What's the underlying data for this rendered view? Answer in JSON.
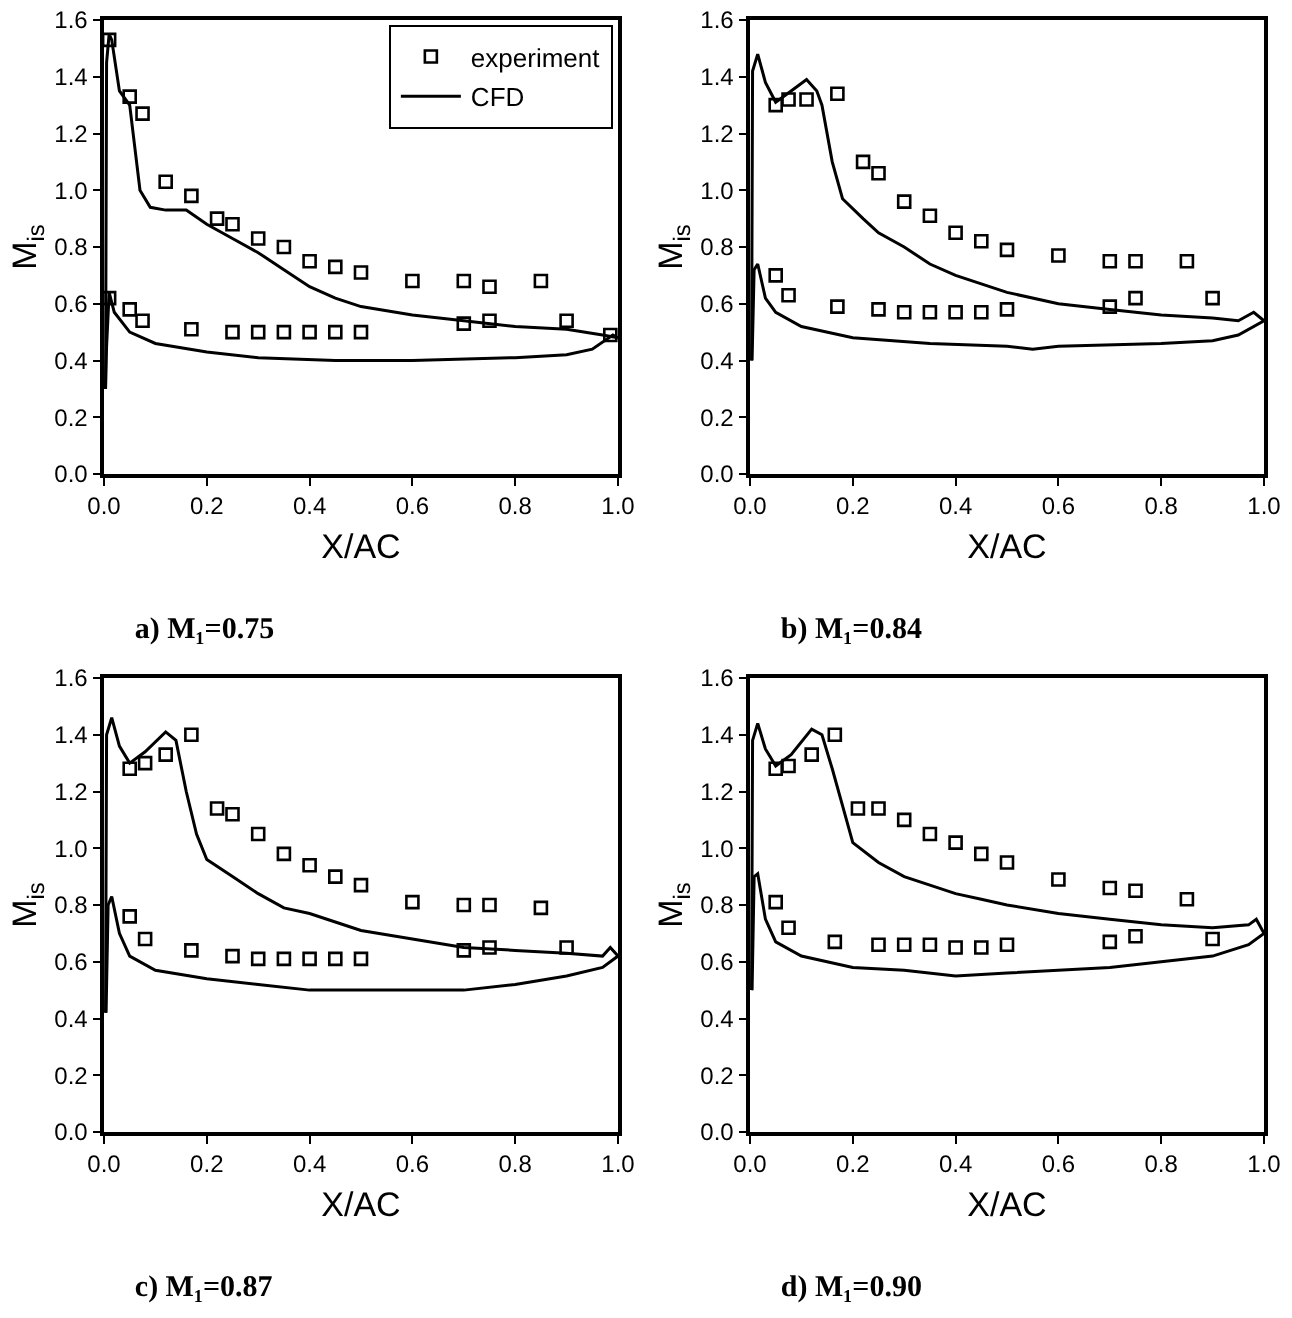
{
  "chart_data": [
    {
      "type": "scatter",
      "title": "a) M₁=0.75",
      "xlabel": "X/AC",
      "ylabel": "M$_{is}$",
      "xlim": [
        0,
        1
      ],
      "ylim": [
        0,
        1.6
      ],
      "xticks": [
        {
          "value": 0,
          "label": "0.0"
        },
        {
          "value": 0.2,
          "label": "0.2"
        },
        {
          "value": 0.4,
          "label": "0.4"
        },
        {
          "value": 0.6,
          "label": "0.6"
        },
        {
          "value": 0.8,
          "label": "0.8"
        },
        {
          "value": 1,
          "label": "1.0"
        }
      ],
      "yticks": [
        {
          "value": 0,
          "label": "0.0"
        },
        {
          "value": 0.2,
          "label": "0.2"
        },
        {
          "value": 0.4,
          "label": "0.4"
        },
        {
          "value": 0.6,
          "label": "0.6"
        },
        {
          "value": 0.8,
          "label": "0.8"
        },
        {
          "value": 1,
          "label": "1.0"
        },
        {
          "value": 1.2,
          "label": "1.2"
        },
        {
          "value": 1.4,
          "label": "1.4"
        },
        {
          "value": 1.6,
          "label": "1.6"
        }
      ],
      "grid": false,
      "legend": "top right",
      "series": [
        {
          "name": "experiment",
          "type": "scatter",
          "marker": "square",
          "color": "#000000",
          "x": [
            0.01,
            0.05,
            0.075,
            0.12,
            0.17,
            0.22,
            0.25,
            0.3,
            0.35,
            0.4,
            0.45,
            0.5,
            0.6,
            0.7,
            0.75,
            0.85,
            0.9,
            0.01,
            0.05,
            0.075,
            0.17,
            0.25,
            0.3,
            0.35,
            0.4,
            0.45,
            0.5,
            0.7,
            0.75,
            0.985
          ],
          "values": [
            1.53,
            1.33,
            1.27,
            1.03,
            0.98,
            0.9,
            0.88,
            0.83,
            0.8,
            0.75,
            0.73,
            0.71,
            0.68,
            0.68,
            0.66,
            0.68,
            0.54,
            0.62,
            0.58,
            0.54,
            0.51,
            0.5,
            0.5,
            0.5,
            0.5,
            0.5,
            0.5,
            0.53,
            0.54,
            0.49
          ]
        },
        {
          "name": "CFD",
          "type": "line",
          "marker": "none",
          "line_style": "solid",
          "color": "#000000",
          "x": [
            0.003,
            0.005,
            0.01,
            0.015,
            0.03,
            0.05,
            0.06,
            0.07,
            0.09,
            0.12,
            0.16,
            0.2,
            0.25,
            0.3,
            0.35,
            0.4,
            0.45,
            0.5,
            0.6,
            0.7,
            0.8,
            0.9,
            0.97,
            1.0
          ],
          "values": [
            0.3,
            1.45,
            1.55,
            1.53,
            1.35,
            1.3,
            1.15,
            1.0,
            0.94,
            0.93,
            0.93,
            0.88,
            0.83,
            0.78,
            0.72,
            0.66,
            0.62,
            0.59,
            0.56,
            0.54,
            0.52,
            0.51,
            0.49,
            0.48
          ]
        },
        {
          "type": "line",
          "marker": "none",
          "line_style": "solid",
          "color": "#000000",
          "x": [
            0.003,
            0.005,
            0.01,
            0.02,
            0.05,
            0.1,
            0.2,
            0.3,
            0.45,
            0.6,
            0.8,
            0.9,
            0.95,
            0.99,
            1.0
          ],
          "values": [
            0.3,
            0.45,
            0.64,
            0.57,
            0.5,
            0.46,
            0.43,
            0.41,
            0.4,
            0.4,
            0.41,
            0.42,
            0.44,
            0.49,
            0.48
          ]
        }
      ]
    },
    {
      "type": "scatter",
      "title": "b) M₁=0.84",
      "xlabel": "X/AC",
      "ylabel": "M$_{is}$",
      "xlim": [
        0,
        1
      ],
      "ylim": [
        0,
        1.6
      ],
      "xticks": [
        {
          "value": 0,
          "label": "0.0"
        },
        {
          "value": 0.2,
          "label": "0.2"
        },
        {
          "value": 0.4,
          "label": "0.4"
        },
        {
          "value": 0.6,
          "label": "0.6"
        },
        {
          "value": 0.8,
          "label": "0.8"
        },
        {
          "value": 1,
          "label": "1.0"
        }
      ],
      "yticks": [
        {
          "value": 0,
          "label": "0.0"
        },
        {
          "value": 0.2,
          "label": "0.2"
        },
        {
          "value": 0.4,
          "label": "0.4"
        },
        {
          "value": 0.6,
          "label": "0.6"
        },
        {
          "value": 0.8,
          "label": "0.8"
        },
        {
          "value": 1,
          "label": "1.0"
        },
        {
          "value": 1.2,
          "label": "1.2"
        },
        {
          "value": 1.4,
          "label": "1.4"
        },
        {
          "value": 1.6,
          "label": "1.6"
        }
      ],
      "grid": false,
      "series": [
        {
          "type": "scatter",
          "marker": "square",
          "color": "#000000",
          "x": [
            0.05,
            0.075,
            0.11,
            0.17,
            0.22,
            0.25,
            0.3,
            0.35,
            0.4,
            0.45,
            0.5,
            0.6,
            0.7,
            0.75,
            0.85,
            0.9,
            0.05,
            0.075,
            0.17,
            0.25,
            0.3,
            0.35,
            0.4,
            0.45,
            0.5,
            0.7,
            0.75
          ],
          "values": [
            1.3,
            1.32,
            1.32,
            1.34,
            1.1,
            1.06,
            0.96,
            0.91,
            0.85,
            0.82,
            0.79,
            0.77,
            0.75,
            0.75,
            0.75,
            0.62,
            0.7,
            0.63,
            0.59,
            0.58,
            0.57,
            0.57,
            0.57,
            0.57,
            0.58,
            0.59,
            0.62
          ]
        },
        {
          "type": "line",
          "marker": "none",
          "line_style": "solid",
          "color": "#000000",
          "x": [
            0.003,
            0.005,
            0.015,
            0.03,
            0.05,
            0.08,
            0.11,
            0.13,
            0.14,
            0.16,
            0.18,
            0.22,
            0.25,
            0.3,
            0.35,
            0.4,
            0.45,
            0.5,
            0.6,
            0.7,
            0.8,
            0.9,
            0.95,
            0.98,
            1.0
          ],
          "values": [
            0.4,
            1.42,
            1.48,
            1.38,
            1.31,
            1.35,
            1.39,
            1.35,
            1.3,
            1.1,
            0.97,
            0.9,
            0.85,
            0.8,
            0.74,
            0.7,
            0.67,
            0.64,
            0.6,
            0.58,
            0.56,
            0.55,
            0.54,
            0.57,
            0.54
          ]
        },
        {
          "type": "line",
          "marker": "none",
          "line_style": "solid",
          "color": "#000000",
          "x": [
            0.004,
            0.008,
            0.015,
            0.03,
            0.05,
            0.1,
            0.2,
            0.35,
            0.5,
            0.55,
            0.6,
            0.8,
            0.9,
            0.95,
            1.0
          ],
          "values": [
            0.4,
            0.72,
            0.74,
            0.62,
            0.57,
            0.52,
            0.48,
            0.46,
            0.45,
            0.44,
            0.45,
            0.46,
            0.47,
            0.49,
            0.54
          ]
        }
      ]
    },
    {
      "type": "scatter",
      "title": "c) M₁=0.87",
      "xlabel": "X/AC",
      "ylabel": "M$_{is}$",
      "xlim": [
        0,
        1
      ],
      "ylim": [
        0,
        1.6
      ],
      "xticks": [
        {
          "value": 0,
          "label": "0.0"
        },
        {
          "value": 0.2,
          "label": "0.2"
        },
        {
          "value": 0.4,
          "label": "0.4"
        },
        {
          "value": 0.6,
          "label": "0.6"
        },
        {
          "value": 0.8,
          "label": "0.8"
        },
        {
          "value": 1,
          "label": "1.0"
        }
      ],
      "yticks": [
        {
          "value": 0,
          "label": "0.0"
        },
        {
          "value": 0.2,
          "label": "0.2"
        },
        {
          "value": 0.4,
          "label": "0.4"
        },
        {
          "value": 0.6,
          "label": "0.6"
        },
        {
          "value": 0.8,
          "label": "0.8"
        },
        {
          "value": 1,
          "label": "1.0"
        },
        {
          "value": 1.2,
          "label": "1.2"
        },
        {
          "value": 1.4,
          "label": "1.4"
        },
        {
          "value": 1.6,
          "label": "1.6"
        }
      ],
      "grid": false,
      "series": [
        {
          "type": "scatter",
          "marker": "square",
          "color": "#000000",
          "x": [
            0.05,
            0.08,
            0.12,
            0.17,
            0.22,
            0.25,
            0.3,
            0.35,
            0.4,
            0.45,
            0.5,
            0.6,
            0.7,
            0.75,
            0.85,
            0.9,
            0.05,
            0.08,
            0.17,
            0.25,
            0.3,
            0.35,
            0.4,
            0.45,
            0.5,
            0.7,
            0.75
          ],
          "values": [
            1.28,
            1.3,
            1.33,
            1.4,
            1.14,
            1.12,
            1.05,
            0.98,
            0.94,
            0.9,
            0.87,
            0.81,
            0.8,
            0.8,
            0.79,
            0.65,
            0.76,
            0.68,
            0.64,
            0.62,
            0.61,
            0.61,
            0.61,
            0.61,
            0.61,
            0.64,
            0.65
          ]
        },
        {
          "type": "line",
          "marker": "none",
          "line_style": "solid",
          "color": "#000000",
          "x": [
            0.003,
            0.005,
            0.015,
            0.03,
            0.05,
            0.08,
            0.12,
            0.14,
            0.16,
            0.18,
            0.2,
            0.25,
            0.3,
            0.35,
            0.4,
            0.45,
            0.5,
            0.6,
            0.7,
            0.8,
            0.9,
            0.97,
            0.985,
            1.0
          ],
          "values": [
            0.42,
            1.4,
            1.46,
            1.36,
            1.3,
            1.34,
            1.41,
            1.38,
            1.2,
            1.05,
            0.96,
            0.9,
            0.84,
            0.79,
            0.77,
            0.74,
            0.71,
            0.68,
            0.65,
            0.64,
            0.63,
            0.62,
            0.65,
            0.62
          ]
        },
        {
          "type": "line",
          "marker": "none",
          "line_style": "solid",
          "color": "#000000",
          "x": [
            0.004,
            0.008,
            0.015,
            0.03,
            0.05,
            0.1,
            0.2,
            0.3,
            0.4,
            0.5,
            0.7,
            0.8,
            0.9,
            0.97,
            1.0
          ],
          "values": [
            0.42,
            0.8,
            0.83,
            0.7,
            0.62,
            0.57,
            0.54,
            0.52,
            0.5,
            0.5,
            0.5,
            0.52,
            0.55,
            0.58,
            0.62
          ]
        }
      ]
    },
    {
      "type": "scatter",
      "title": "d) M₁=0.90",
      "xlabel": "X/AC",
      "ylabel": "M$_{is}$",
      "xlim": [
        0,
        1
      ],
      "ylim": [
        0,
        1.6
      ],
      "xticks": [
        {
          "value": 0,
          "label": "0.0"
        },
        {
          "value": 0.2,
          "label": "0.2"
        },
        {
          "value": 0.4,
          "label": "0.4"
        },
        {
          "value": 0.6,
          "label": "0.6"
        },
        {
          "value": 0.8,
          "label": "0.8"
        },
        {
          "value": 1,
          "label": "1.0"
        }
      ],
      "yticks": [
        {
          "value": 0,
          "label": "0.0"
        },
        {
          "value": 0.2,
          "label": "0.2"
        },
        {
          "value": 0.4,
          "label": "0.4"
        },
        {
          "value": 0.6,
          "label": "0.6"
        },
        {
          "value": 0.8,
          "label": "0.8"
        },
        {
          "value": 1,
          "label": "1.0"
        },
        {
          "value": 1.2,
          "label": "1.2"
        },
        {
          "value": 1.4,
          "label": "1.4"
        },
        {
          "value": 1.6,
          "label": "1.6"
        }
      ],
      "grid": false,
      "series": [
        {
          "type": "scatter",
          "marker": "square",
          "color": "#000000",
          "x": [
            0.05,
            0.075,
            0.12,
            0.165,
            0.21,
            0.25,
            0.3,
            0.35,
            0.4,
            0.45,
            0.5,
            0.6,
            0.7,
            0.75,
            0.85,
            0.9,
            0.05,
            0.075,
            0.165,
            0.25,
            0.3,
            0.35,
            0.4,
            0.45,
            0.5,
            0.7,
            0.75
          ],
          "values": [
            1.28,
            1.29,
            1.33,
            1.4,
            1.14,
            1.14,
            1.1,
            1.05,
            1.02,
            0.98,
            0.95,
            0.89,
            0.86,
            0.85,
            0.82,
            0.68,
            0.81,
            0.72,
            0.67,
            0.66,
            0.66,
            0.66,
            0.65,
            0.65,
            0.66,
            0.67,
            0.69
          ]
        },
        {
          "type": "line",
          "marker": "none",
          "line_style": "solid",
          "color": "#000000",
          "x": [
            0.003,
            0.005,
            0.015,
            0.03,
            0.05,
            0.08,
            0.12,
            0.14,
            0.16,
            0.18,
            0.2,
            0.25,
            0.3,
            0.35,
            0.4,
            0.45,
            0.5,
            0.6,
            0.7,
            0.8,
            0.9,
            0.97,
            0.985,
            1.0
          ],
          "values": [
            0.5,
            1.38,
            1.44,
            1.35,
            1.29,
            1.33,
            1.42,
            1.4,
            1.28,
            1.15,
            1.02,
            0.95,
            0.9,
            0.87,
            0.84,
            0.82,
            0.8,
            0.77,
            0.75,
            0.73,
            0.72,
            0.73,
            0.75,
            0.7
          ]
        },
        {
          "type": "line",
          "marker": "none",
          "line_style": "solid",
          "color": "#000000",
          "x": [
            0.004,
            0.008,
            0.015,
            0.03,
            0.05,
            0.1,
            0.2,
            0.3,
            0.4,
            0.5,
            0.7,
            0.8,
            0.9,
            0.97,
            1.0
          ],
          "values": [
            0.5,
            0.9,
            0.91,
            0.75,
            0.67,
            0.62,
            0.58,
            0.57,
            0.55,
            0.56,
            0.58,
            0.6,
            0.62,
            0.66,
            0.7
          ]
        }
      ]
    }
  ]
}
